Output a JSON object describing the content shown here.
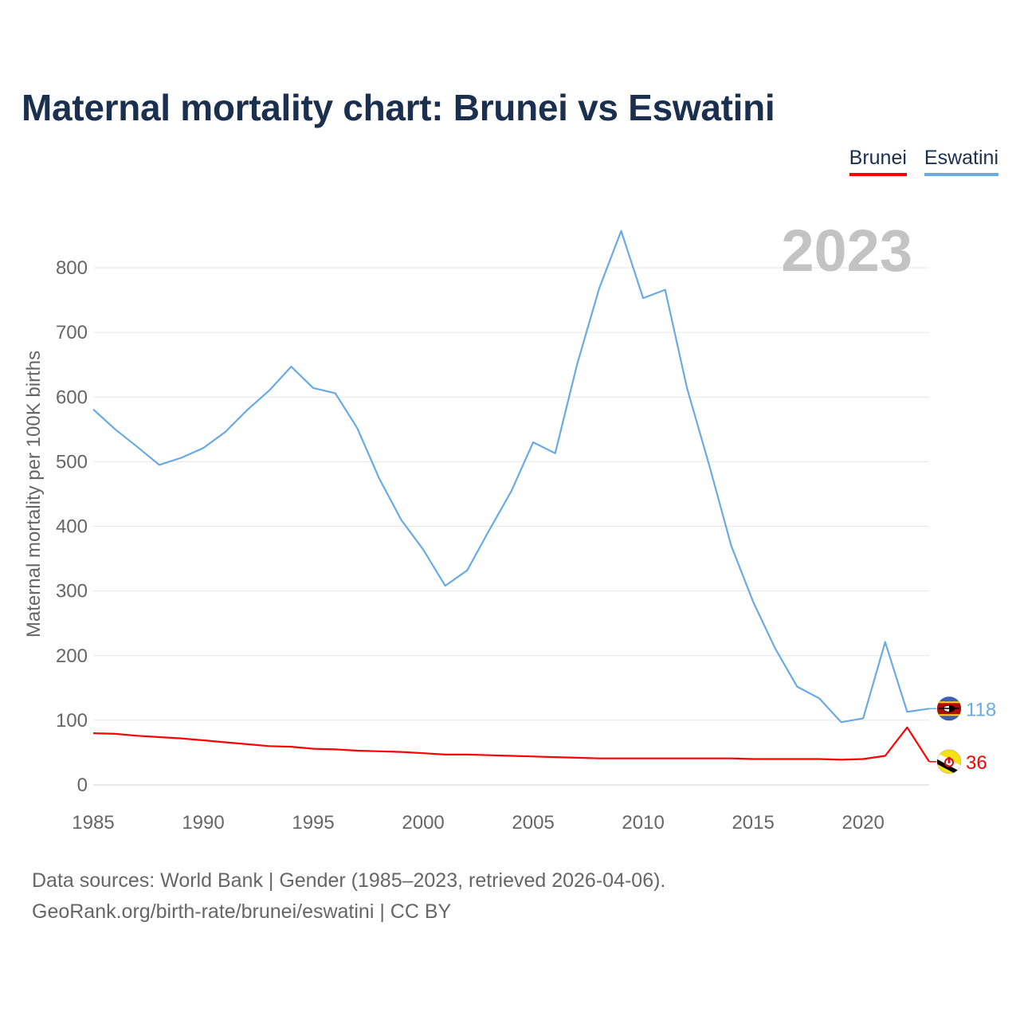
{
  "page": {
    "title": "Maternal mortality chart: Brunei vs Eswatini",
    "year_watermark": "2023",
    "footer_line1": "Data sources: World Bank | Gender (1985–2023, retrieved 2026-04-06).",
    "footer_line2": "GeoRank.org/birth-rate/brunei/eswatini | CC BY"
  },
  "chart_data": {
    "type": "line",
    "title": "Maternal mortality chart: Brunei vs Eswatini",
    "xlabel": "",
    "ylabel": "Maternal mortality per 100K births",
    "xlim": [
      1985,
      2023
    ],
    "ylim": [
      0,
      800
    ],
    "xticks": [
      1985,
      1990,
      1995,
      2000,
      2005,
      2010,
      2015,
      2020
    ],
    "yticks": [
      0,
      100,
      200,
      300,
      400,
      500,
      600,
      700,
      800
    ],
    "grid": true,
    "legend_position": "top-right",
    "x": [
      1985,
      1986,
      1987,
      1988,
      1989,
      1990,
      1991,
      1992,
      1993,
      1994,
      1995,
      1996,
      1997,
      1998,
      1999,
      2000,
      2001,
      2002,
      2003,
      2004,
      2005,
      2006,
      2007,
      2008,
      2009,
      2010,
      2011,
      2012,
      2013,
      2014,
      2015,
      2016,
      2017,
      2018,
      2019,
      2020,
      2021,
      2022,
      2023
    ],
    "series": [
      {
        "name": "Brunei",
        "color": "#ff0000",
        "end_label": "36",
        "flag_icon": "brunei-flag-icon",
        "values": [
          80,
          79,
          76,
          74,
          72,
          69,
          66,
          63,
          60,
          59,
          56,
          55,
          53,
          52,
          51,
          49,
          47,
          47,
          46,
          45,
          44,
          43,
          42,
          41,
          41,
          41,
          41,
          41,
          41,
          41,
          40,
          40,
          40,
          40,
          39,
          40,
          45,
          89,
          36
        ]
      },
      {
        "name": "Eswatini",
        "color": "#6aaae4",
        "end_label": "118",
        "flag_icon": "eswatini-flag-icon",
        "values": [
          581,
          550,
          523,
          495,
          506,
          521,
          546,
          580,
          610,
          647,
          614,
          606,
          552,
          474,
          410,
          364,
          308,
          332,
          394,
          454,
          530,
          513,
          651,
          768,
          857,
          753,
          766,
          613,
          495,
          370,
          283,
          211,
          152,
          134,
          97,
          103,
          221,
          113,
          118
        ]
      }
    ]
  }
}
